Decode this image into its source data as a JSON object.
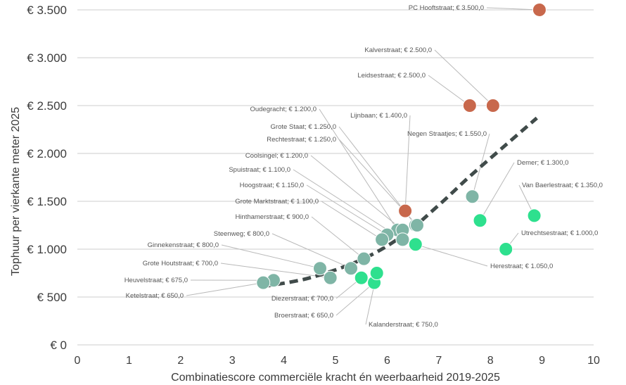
{
  "chart_data": {
    "type": "scatter",
    "xlabel": "Combinatiescore commerciële kracht én weerbaarheid 2019-2025",
    "ylabel": "Tophuur per vierkante meter 2025",
    "xlim": [
      0,
      10
    ],
    "ylim": [
      0,
      3500
    ],
    "x_ticks": [
      0,
      1,
      2,
      3,
      4,
      5,
      6,
      7,
      8,
      9,
      10
    ],
    "y_ticks": [
      0,
      500,
      1000,
      1500,
      2000,
      2500,
      3000,
      3500
    ],
    "y_tick_labels": [
      "€ 0",
      "€ 500",
      "€ 1.000",
      "€ 1.500",
      "€ 2.000",
      "€ 2.500",
      "€ 3.000",
      "€ 3.500"
    ],
    "grid": "horizontal",
    "colors": {
      "orange": "#c8684c",
      "teal": "#7fb5a6",
      "green": "#2ee08e",
      "trend": "#404b4a",
      "grid": "#cccccc",
      "leader": "#b9b9b9"
    },
    "trendline": {
      "style": "dashed",
      "x": [
        3.6,
        4.5,
        5.5,
        6.3,
        7.0,
        7.6,
        8.3,
        8.9
      ],
      "y": [
        610,
        700,
        890,
        1140,
        1460,
        1760,
        2090,
        2370
      ]
    },
    "points": [
      {
        "label": "PC Hooftstraat; € 3.500,0",
        "x": 8.95,
        "y": 3500,
        "color": "orange"
      },
      {
        "label": "Kalverstraat; € 2.500,0",
        "x": 8.05,
        "y": 2500,
        "color": "orange"
      },
      {
        "label": "Leidsestraat; € 2.500,0",
        "x": 7.6,
        "y": 2500,
        "color": "orange"
      },
      {
        "label": "Lijnbaan; € 1.400,0",
        "x": 6.35,
        "y": 1400,
        "color": "orange"
      },
      {
        "label": "Negen Straatjes; € 1.550,0",
        "x": 7.65,
        "y": 1550,
        "color": "teal"
      },
      {
        "label": "Oudegracht; € 1.200,0",
        "x": 6.2,
        "y": 1200,
        "color": "teal"
      },
      {
        "label": "Grote Staat; € 1.250,0",
        "x": 6.55,
        "y": 1250,
        "color": "teal"
      },
      {
        "label": "Rechtestraat; € 1.250,0",
        "x": 6.58,
        "y": 1250,
        "color": "teal"
      },
      {
        "label": "Coolsingel; € 1.200,0",
        "x": 6.3,
        "y": 1200,
        "color": "teal"
      },
      {
        "label": "Spuistraat; € 1.100,0",
        "x": 6.3,
        "y": 1100,
        "color": "teal"
      },
      {
        "label": "Hoogstraat; € 1.150,0",
        "x": 6.0,
        "y": 1150,
        "color": "teal"
      },
      {
        "label": "Grote Marktstraat; € 1.100,0",
        "x": 5.9,
        "y": 1100,
        "color": "teal"
      },
      {
        "label": "Hinthamerstraat; € 900,0",
        "x": 5.55,
        "y": 900,
        "color": "teal"
      },
      {
        "label": "Steenweg; € 800,0",
        "x": 5.3,
        "y": 800,
        "color": "teal"
      },
      {
        "label": "Ginnekenstraat; € 800,0",
        "x": 4.7,
        "y": 800,
        "color": "teal"
      },
      {
        "label": "Grote Houtstraat; € 700,0",
        "x": 4.9,
        "y": 700,
        "color": "teal"
      },
      {
        "label": "Heuvelstraat; € 675,0",
        "x": 3.8,
        "y": 675,
        "color": "teal"
      },
      {
        "label": "Ketelstraat; € 650,0",
        "x": 3.6,
        "y": 650,
        "color": "teal"
      },
      {
        "label": "Demer; € 1.300,0",
        "x": 7.8,
        "y": 1300,
        "color": "green"
      },
      {
        "label": "Van Baerlestraat; € 1.350,0",
        "x": 8.85,
        "y": 1350,
        "color": "green"
      },
      {
        "label": "Utrechtsestraat; € 1.000,0",
        "x": 8.3,
        "y": 1000,
        "color": "green"
      },
      {
        "label": "Herestraat; € 1.050,0",
        "x": 6.55,
        "y": 1050,
        "color": "green"
      },
      {
        "label": "Diezerstraat; € 700,0",
        "x": 5.5,
        "y": 700,
        "color": "green"
      },
      {
        "label": "Broerstraat; € 650,0",
        "x": 5.75,
        "y": 650,
        "color": "green"
      },
      {
        "label": "Kalanderstraat; € 750,0",
        "x": 5.8,
        "y": 750,
        "color": "green"
      }
    ]
  }
}
